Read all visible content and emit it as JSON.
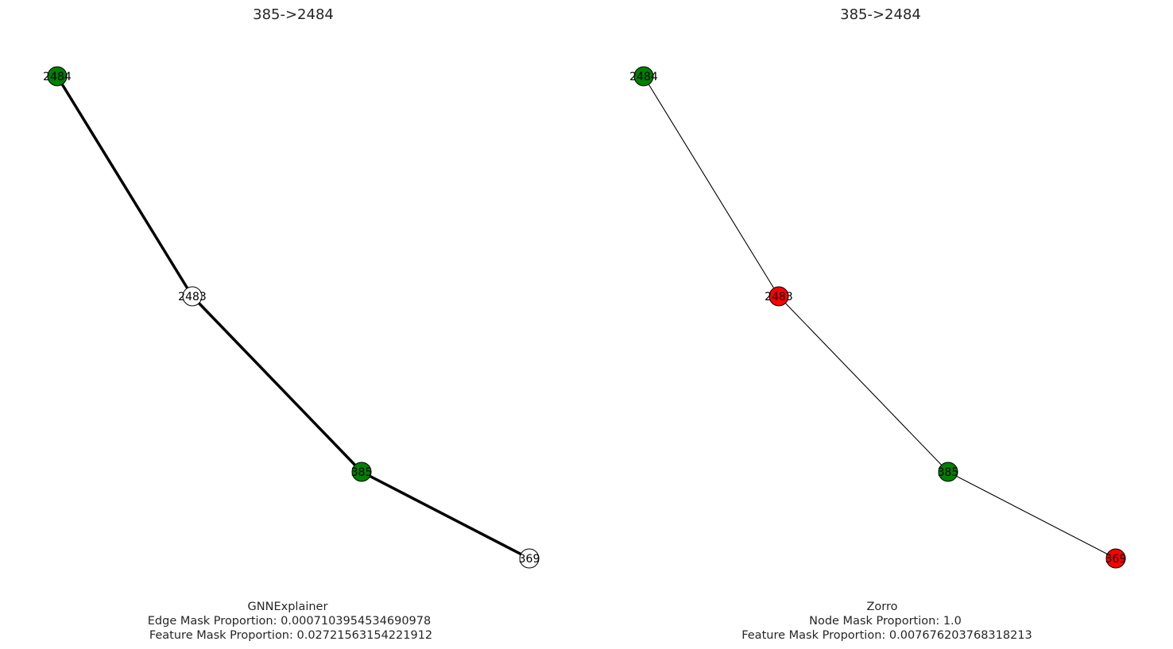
{
  "panels": [
    {
      "title": "385->2484",
      "edge_style": "heavy",
      "caption": [
        "GNNExplainer",
        "Edge Mask Proportion: 0.0007103954534690978",
        "Feature Mask Proportion: 0.02721563154221912"
      ],
      "nodes": [
        {
          "id": "2484",
          "label": "2484",
          "color": "#008000"
        },
        {
          "id": "2483",
          "label": "2483",
          "color": "#ffffff"
        },
        {
          "id": "385",
          "label": "385",
          "color": "#008000"
        },
        {
          "id": "369",
          "label": "369",
          "color": "#ffffff"
        }
      ],
      "edges": [
        [
          "2484",
          "2483"
        ],
        [
          "2483",
          "385"
        ],
        [
          "385",
          "369"
        ]
      ]
    },
    {
      "title": "385->2484",
      "edge_style": "thin",
      "caption": [
        "Zorro",
        "Node Mask Proportion: 1.0",
        "Feature Mask Proportion: 0.007676203768318213"
      ],
      "nodes": [
        {
          "id": "2484",
          "label": "2484",
          "color": "#008000"
        },
        {
          "id": "2483",
          "label": "2483",
          "color": "#ff0000"
        },
        {
          "id": "385",
          "label": "385",
          "color": "#008000"
        },
        {
          "id": "369",
          "label": "369",
          "color": "#ff0000"
        }
      ],
      "edges": [
        [
          "2484",
          "2483"
        ],
        [
          "2483",
          "385"
        ],
        [
          "385",
          "369"
        ]
      ]
    }
  ]
}
